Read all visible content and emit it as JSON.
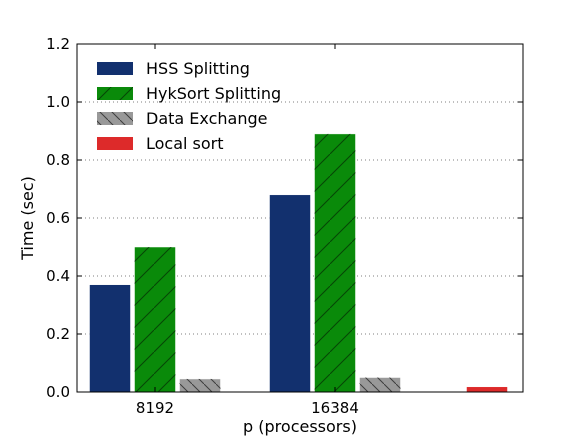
{
  "chart_data": {
    "type": "bar",
    "xlabel": "p (processors)",
    "ylabel": "Time (sec)",
    "ylim": [
      0,
      1.2
    ],
    "yticks": [
      "0.0",
      "0.2",
      "0.4",
      "0.6",
      "0.8",
      "1.0",
      "1.2"
    ],
    "categories": [
      "8192",
      "16384"
    ],
    "grid": "y-dotted",
    "legend_position": "top-left",
    "series": [
      {
        "name": "HSS Splitting",
        "color": "#12306e",
        "hatch": "none",
        "values": [
          0.37,
          0.68
        ]
      },
      {
        "name": "HykSort Splitting",
        "color": "#0a8a0a",
        "hatch": "forward-diagonal",
        "values": [
          0.5,
          0.89
        ]
      },
      {
        "name": "Data Exchange",
        "color": "#999999",
        "hatch": "back-diagonal",
        "values": [
          0.045,
          0.05
        ]
      },
      {
        "name": "Local sort",
        "color": "#dd2a2a",
        "hatch": "none",
        "values": [
          null,
          0.018
        ]
      }
    ]
  }
}
